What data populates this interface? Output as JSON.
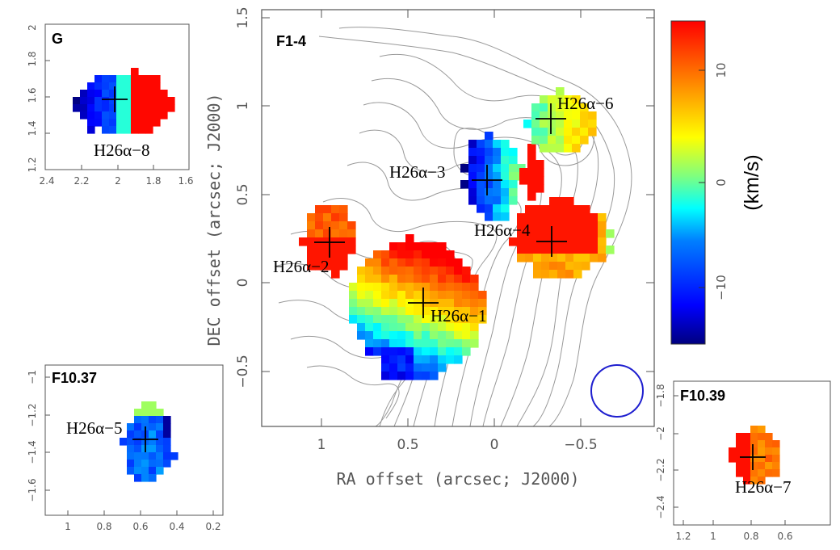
{
  "chart_data": [
    {
      "type": "heatmap",
      "panel": "F1-4",
      "xlabel": "RA offset (arcsec; J2000)",
      "ylabel": "DEC offset (arcsec; J2000)",
      "xlim": [
        1.4,
        -0.9
      ],
      "ylim": [
        -0.85,
        1.5
      ],
      "x_ticks": [
        "1",
        "0.5",
        "0",
        "−0.5"
      ],
      "y_ticks": [
        "−0.5",
        "0",
        "0.5",
        "1",
        "1.5"
      ],
      "sources": [
        {
          "name": "H26α−1",
          "ra": 0.4,
          "dec": -0.12
        },
        {
          "name": "H26α−2",
          "ra": 0.96,
          "dec": 0.23
        },
        {
          "name": "H26α−3",
          "ra": 0.04,
          "dec": 0.6
        },
        {
          "name": "H26α−4",
          "ra": -0.33,
          "dec": 0.23
        },
        {
          "name": "H26α−6",
          "ra": -0.34,
          "dec": 0.94
        }
      ],
      "beam": {
        "ra": -0.85,
        "dec": -0.62,
        "diameter_arcsec": 0.3
      }
    },
    {
      "type": "heatmap",
      "panel": "G",
      "xlim": [
        2.4,
        1.6
      ],
      "ylim": [
        1.2,
        2.0
      ],
      "x_ticks": [
        "2.4",
        "2.2",
        "2",
        "1.8",
        "1.6"
      ],
      "y_ticks": [
        "1.2",
        "1.4",
        "1.6",
        "1.8",
        "2"
      ],
      "sources": [
        {
          "name": "H26α−8",
          "ra": 2.02,
          "dec": 1.57
        }
      ]
    },
    {
      "type": "heatmap",
      "panel": "F10.37",
      "xlim": [
        1.1,
        0.2
      ],
      "ylim": [
        -1.7,
        -0.9
      ],
      "x_ticks": [
        "1",
        "0.8",
        "0.6",
        "0.4",
        "0.2"
      ],
      "y_ticks": [
        "−1.6",
        "−1.4",
        "−1.2",
        "−1"
      ],
      "sources": [
        {
          "name": "H26α−5",
          "ra": 0.58,
          "dec": -1.33
        }
      ]
    },
    {
      "type": "heatmap",
      "panel": "F10.39",
      "xlim": [
        1.25,
        0.5
      ],
      "ylim": [
        -2.45,
        -1.75
      ],
      "x_ticks": [
        "1.2",
        "1",
        "0.8",
        "0.6"
      ],
      "y_ticks": [
        "−2.4",
        "−2.2",
        "−2",
        "−1.8"
      ],
      "sources": [
        {
          "name": "H26α−7",
          "ra": 0.8,
          "dec": -2.1
        }
      ]
    }
  ],
  "colorbar": {
    "title": "(km/s)",
    "range": [
      -15,
      15
    ],
    "ticks": [
      "10",
      "0",
      "−10"
    ],
    "colors": [
      "#00007f",
      "#0000ff",
      "#007fff",
      "#00ffff",
      "#7fff7f",
      "#ffff00",
      "#ff7f00",
      "#ff0000"
    ]
  },
  "colors": {
    "contour": "#999999",
    "beam": "#1f1fcf",
    "frame": "#555555"
  }
}
